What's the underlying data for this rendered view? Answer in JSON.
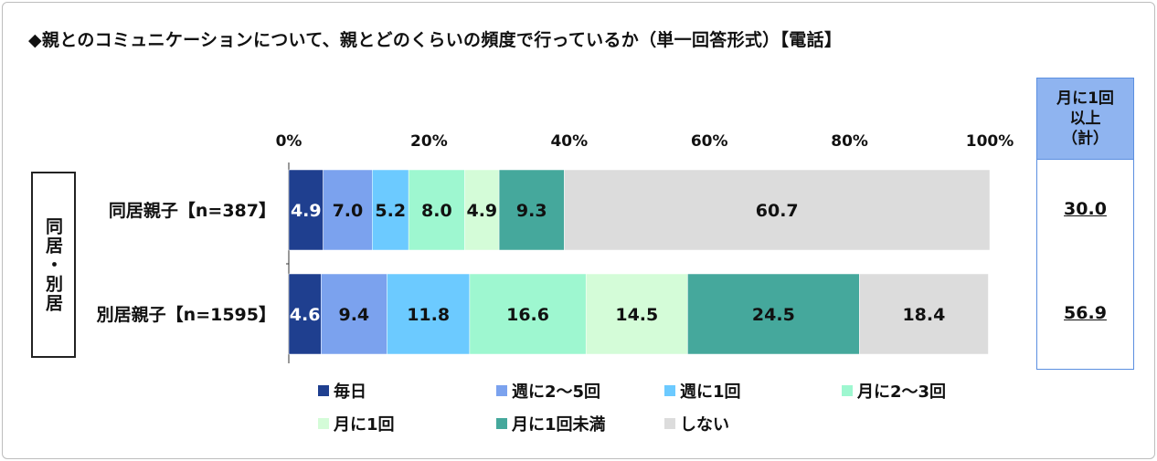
{
  "chart_data": {
    "type": "bar",
    "orientation": "horizontal",
    "stacked": true,
    "title": "◆親とのコミュニケーションについて、親とどのくらいの頻度で行っているか（単一回答形式）【電話】",
    "group_label": "同居・別居",
    "categories": [
      "同居親子【n=387】",
      "別居親子【n=1595】"
    ],
    "xlim": [
      0,
      100
    ],
    "xticks": [
      "0%",
      "20%",
      "40%",
      "60%",
      "80%",
      "100%"
    ],
    "legend_position": "bottom",
    "series": [
      {
        "name": "毎日",
        "color": "#1f3f8f",
        "values": [
          4.9,
          4.6
        ]
      },
      {
        "name": "週に2～5回",
        "color": "#7ba2ee",
        "values": [
          7.0,
          9.4
        ]
      },
      {
        "name": "週に1回",
        "color": "#6ccaff",
        "values": [
          5.2,
          11.8
        ]
      },
      {
        "name": "月に2～3回",
        "color": "#9ef7d0",
        "values": [
          8.0,
          16.6
        ]
      },
      {
        "name": "月に1回",
        "color": "#d4fcd8",
        "values": [
          4.9,
          14.5
        ]
      },
      {
        "name": "月に1回未満",
        "color": "#45a89c",
        "values": [
          9.3,
          24.5
        ]
      },
      {
        "name": "しない",
        "color": "#dcdcdc",
        "values": [
          60.7,
          18.4
        ]
      }
    ],
    "total": {
      "header": "月に1回\n以上\n（計）",
      "values": [
        "30.0",
        "56.9"
      ]
    }
  }
}
